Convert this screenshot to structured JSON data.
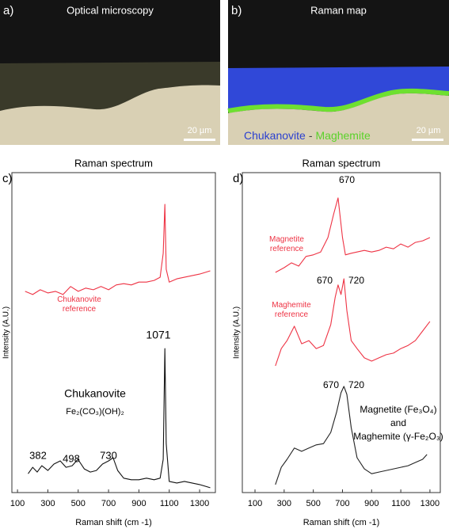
{
  "panels": [
    {
      "label": "a)",
      "title": "Optical microscopy",
      "scale_bar": "20 µm"
    },
    {
      "label": "b)",
      "title": "Raman map",
      "scale_bar": "20 µm",
      "legend": [
        {
          "text": "Chukanovite",
          "color": "#2a3fd0"
        },
        {
          "text": "-",
          "color": "#444444"
        },
        {
          "text": "Maghemite",
          "color": "#5ad22a"
        }
      ]
    }
  ],
  "chart_data": [
    {
      "type": "line",
      "panel_label": "c)",
      "title": "Raman spectrum",
      "x_label": "Raman shift (cm -1)",
      "y_label": "Intensity (A.U.)",
      "xlim": [
        63,
        1404
      ],
      "ylim": [
        0,
        100
      ],
      "xticks": [
        100,
        300,
        500,
        700,
        900,
        1100,
        1300
      ],
      "series": [
        {
          "name": "Chukanovite reference",
          "color": "#ee3344",
          "x": [
            150,
            200,
            250,
            300,
            350,
            400,
            450,
            500,
            550,
            600,
            650,
            700,
            750,
            800,
            850,
            900,
            950,
            1000,
            1040,
            1060,
            1071,
            1080,
            1100,
            1150,
            1200,
            1250,
            1300,
            1370
          ],
          "values": [
            62.9,
            61.9,
            63.4,
            62.4,
            62.9,
            61.9,
            64.4,
            62.9,
            63.9,
            63.4,
            64.4,
            63.4,
            64.9,
            65.3,
            64.9,
            65.8,
            65.8,
            66.3,
            67.3,
            74.8,
            90.1,
            69.8,
            65.8,
            66.8,
            67.3,
            67.8,
            68.3,
            69.3
          ]
        },
        {
          "color": "#111111",
          "x": [
            170,
            200,
            230,
            260,
            300,
            340,
            382,
            420,
            460,
            498,
            540,
            580,
            620,
            660,
            700,
            730,
            760,
            800,
            850,
            900,
            950,
            1000,
            1040,
            1060,
            1071,
            1080,
            1100,
            1150,
            1200,
            1250,
            1300,
            1370
          ],
          "values": [
            5.9,
            7.9,
            6.4,
            8.4,
            6.9,
            8.9,
            9.9,
            7.9,
            8.4,
            10.4,
            7.4,
            6.4,
            6.9,
            8.9,
            9.9,
            10.9,
            6.9,
            4.5,
            4.0,
            4.0,
            4.5,
            4.0,
            4.5,
            10.4,
            45.0,
            15.3,
            3.5,
            3.0,
            3.5,
            3.0,
            2.5,
            1.5
          ]
        }
      ],
      "annotations": [
        {
          "text": "1071"
        },
        {
          "text": "Chukanovite"
        },
        {
          "text": "Fe₂(CO₃)(OH)₂"
        },
        {
          "text": "382"
        },
        {
          "text": "498"
        },
        {
          "text": "730"
        }
      ]
    },
    {
      "type": "line",
      "panel_label": "d)",
      "title": "Raman spectrum",
      "x_label": "Raman shift (cm -1)",
      "y_label": "Intensity (A.U.)",
      "xlim": [
        13,
        1371
      ],
      "ylim": [
        0,
        100
      ],
      "xticks": [
        100,
        300,
        500,
        700,
        900,
        1100,
        1300
      ],
      "series": [
        {
          "name": "Magnetite reference",
          "color": "#ee3344",
          "x": [
            240,
            300,
            350,
            400,
            450,
            500,
            550,
            600,
            640,
            670,
            700,
            720,
            760,
            800,
            850,
            900,
            950,
            1000,
            1050,
            1100,
            1150,
            1200,
            1250,
            1300
          ],
          "values": [
            68.8,
            70.3,
            71.8,
            70.8,
            73.8,
            74.3,
            75.2,
            79.7,
            87.1,
            92.1,
            79.7,
            74.3,
            74.8,
            75.2,
            75.7,
            75.2,
            75.7,
            76.7,
            76.2,
            77.7,
            76.7,
            78.2,
            78.7,
            79.7
          ]
        },
        {
          "name": "Maghemite reference",
          "color": "#ee3344",
          "x": [
            240,
            280,
            320,
            370,
            420,
            470,
            520,
            570,
            620,
            650,
            670,
            690,
            710,
            730,
            760,
            800,
            850,
            900,
            950,
            1000,
            1050,
            1100,
            1150,
            1200,
            1250,
            1300
          ],
          "values": [
            39.6,
            45.0,
            47.5,
            52.0,
            46.5,
            47.5,
            45.0,
            46.0,
            52.5,
            61.1,
            64.9,
            61.9,
            66.8,
            56.9,
            47.5,
            45.0,
            42.1,
            41.1,
            42.1,
            43.1,
            43.6,
            45.0,
            46.0,
            47.5,
            50.5,
            53.5
          ]
        },
        {
          "color": "#222222",
          "x": [
            240,
            280,
            320,
            370,
            420,
            470,
            520,
            570,
            620,
            660,
            690,
            710,
            730,
            760,
            800,
            850,
            900,
            950,
            1000,
            1050,
            1100,
            1150,
            1200,
            1250,
            1280
          ],
          "values": [
            2.5,
            7.9,
            10.4,
            13.9,
            12.9,
            13.9,
            14.9,
            15.3,
            18.8,
            25.2,
            31.2,
            33.2,
            30.7,
            20.3,
            10.9,
            7.4,
            5.9,
            6.4,
            6.9,
            7.4,
            7.9,
            8.4,
            9.4,
            10.4,
            11.9
          ]
        }
      ],
      "annotations": [
        {
          "text": "670"
        },
        {
          "text": "670"
        },
        {
          "text": "720"
        },
        {
          "text": "670"
        },
        {
          "text": "720"
        },
        {
          "text": "Magnetite (Fe₃O₄)"
        },
        {
          "text": "and"
        },
        {
          "text": "Maghemite (γ-Fe₂O₃)"
        }
      ]
    }
  ]
}
